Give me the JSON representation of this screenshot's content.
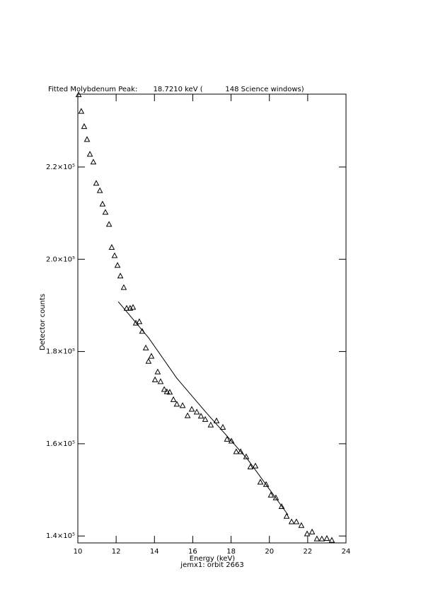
{
  "chart_data": {
    "type": "scatter",
    "title": "Fitted Molybdenum Peak:       18.7210 keV (          148 Science windows)",
    "x_label": "Energy (keV)",
    "y_label": "Detector counts",
    "subtitle": "jemx1: orbit 2663",
    "xlim": [
      10,
      24
    ],
    "ylim": [
      138500,
      235800
    ],
    "xticks": [
      10,
      12,
      14,
      16,
      18,
      20,
      22,
      24
    ],
    "yticks": [
      {
        "value": 140000,
        "label": "1.4×10⁵"
      },
      {
        "value": 160000,
        "label": "1.6×10⁵"
      },
      {
        "value": 180000,
        "label": "1.8×10⁵"
      },
      {
        "value": 200000,
        "label": "2.0×10⁵"
      },
      {
        "value": 220000,
        "label": "2.2×10⁵"
      }
    ],
    "series": [
      {
        "style": "triangle",
        "color": "#000000",
        "x": [
          10.04,
          10.18,
          10.33,
          10.48,
          10.63,
          10.81,
          10.96,
          11.15,
          11.29,
          11.44,
          11.63,
          11.77,
          11.92,
          12.07,
          12.22,
          12.4,
          12.55,
          12.73,
          12.88,
          13.03,
          13.21,
          13.36,
          13.55,
          13.69,
          13.84,
          14.03,
          14.17,
          14.32,
          14.51,
          14.65,
          14.8,
          14.99,
          15.17,
          15.47,
          15.73,
          15.95,
          16.21,
          16.43,
          16.65,
          16.94,
          17.24,
          17.57,
          17.79,
          18.02,
          18.27,
          18.5,
          18.79,
          19.01,
          19.27,
          19.53,
          19.83,
          20.08,
          20.34,
          20.64,
          20.9,
          21.16,
          21.41,
          21.67,
          21.97,
          22.23,
          22.48,
          22.74,
          23.0,
          23.26
        ],
        "values": [
          235700,
          232100,
          228800,
          226000,
          222800,
          221100,
          216500,
          214900,
          212000,
          210200,
          207600,
          202600,
          200800,
          198700,
          196400,
          193900,
          189400,
          189400,
          189600,
          186200,
          186500,
          184400,
          180800,
          177900,
          179000,
          173900,
          175600,
          173500,
          171800,
          171300,
          171200,
          169600,
          168600,
          168300,
          166100,
          167500,
          166900,
          166000,
          165300,
          164100,
          165000,
          163600,
          161000,
          160600,
          158300,
          158300,
          157200,
          155000,
          155200,
          151700,
          151200,
          148900,
          148300,
          146400,
          144300,
          143100,
          143100,
          142300,
          140500,
          140900,
          139400,
          139400,
          139500,
          139100
        ]
      },
      {
        "style": "line",
        "color": "#000000",
        "x": [
          12.11,
          13.69,
          15.17,
          16.65,
          18.87,
          20.97
        ],
        "values": [
          190800,
          183000,
          174200,
          167000,
          156600,
          144600
        ]
      }
    ]
  }
}
